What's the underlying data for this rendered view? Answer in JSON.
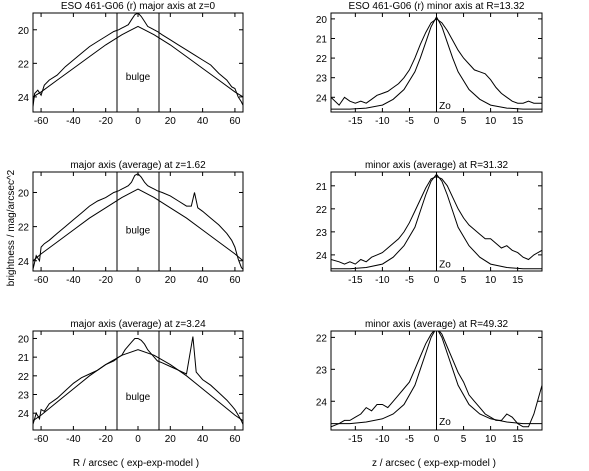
{
  "figure": {
    "ylabel": "brightness   /   mag/arcsec^2",
    "xlabel_left": "R  /  arcsec        ( exp-exp-model )",
    "xlabel_right": "z  /  arcsec        ( exp-exp-model )"
  },
  "chart_data": [
    {
      "type": "line",
      "title": "ESO 461-G06 (r) major axis at z=0",
      "xlim": [
        -65,
        65
      ],
      "ylim": [
        24.9,
        19.0
      ],
      "y_inverted": true,
      "xticks": [
        -60,
        -40,
        -20,
        0,
        20,
        40,
        60
      ],
      "yticks": [
        20,
        22,
        24
      ],
      "vlines": [
        -13,
        13
      ],
      "annotation": "bulge",
      "annotation_at": [
        0,
        23.0
      ],
      "series": [
        {
          "role": "data",
          "x": [
            -65,
            -64,
            -62,
            -60,
            -58,
            -55,
            -50,
            -45,
            -40,
            -35,
            -30,
            -25,
            -20,
            -15,
            -12,
            -10,
            -8,
            -6,
            -4,
            -2,
            0,
            2,
            4,
            6,
            8,
            10,
            12,
            15,
            20,
            25,
            30,
            35,
            40,
            45,
            50,
            55,
            58,
            60,
            62,
            64,
            65
          ],
          "y": [
            24.6,
            23.8,
            23.6,
            23.9,
            23.3,
            23.0,
            22.7,
            22.2,
            21.8,
            21.4,
            21.0,
            20.7,
            20.4,
            20.1,
            20.0,
            19.9,
            19.8,
            19.7,
            19.4,
            19.1,
            19.0,
            19.2,
            19.5,
            19.8,
            19.9,
            20.0,
            20.1,
            20.3,
            20.6,
            20.9,
            21.2,
            21.5,
            21.8,
            22.1,
            22.6,
            23.0,
            23.4,
            23.5,
            24.0,
            24.3,
            24.5
          ]
        },
        {
          "role": "model",
          "x": [
            -65,
            -60,
            -50,
            -40,
            -30,
            -20,
            -10,
            0,
            10,
            20,
            30,
            40,
            50,
            60,
            65
          ],
          "y": [
            24.0,
            23.7,
            23.0,
            22.3,
            21.6,
            20.9,
            20.3,
            19.8,
            20.3,
            20.9,
            21.6,
            22.3,
            23.0,
            23.7,
            24.0
          ]
        }
      ]
    },
    {
      "type": "line",
      "title": "ESO 461-G06 (r) minor axis at R=13.32",
      "xlim": [
        -19.5,
        19.5
      ],
      "ylim": [
        24.75,
        19.7
      ],
      "y_inverted": true,
      "xticks": [
        -15,
        -10,
        -5,
        0,
        5,
        10,
        15
      ],
      "yticks": [
        20,
        21,
        22,
        23,
        24
      ],
      "vlines": [
        0
      ],
      "annotation": "Zo",
      "annotation_at": [
        0.3,
        24.6
      ],
      "series": [
        {
          "role": "data",
          "x": [
            -19.5,
            -18,
            -17,
            -16,
            -15,
            -14,
            -13,
            -12,
            -11,
            -10,
            -9,
            -8,
            -7,
            -6,
            -5,
            -4,
            -3,
            -2,
            -1,
            0,
            1,
            2,
            3,
            4,
            5,
            6,
            7,
            8,
            9,
            10,
            11,
            12,
            13,
            14,
            15,
            16,
            17,
            18,
            19.5
          ],
          "y": [
            24.0,
            24.4,
            24.0,
            24.2,
            24.3,
            24.2,
            24.3,
            24.1,
            23.9,
            23.8,
            23.7,
            23.5,
            23.3,
            23.0,
            22.6,
            22.0,
            21.3,
            20.7,
            20.2,
            20.0,
            20.2,
            20.6,
            21.1,
            21.6,
            22.0,
            22.3,
            22.6,
            22.7,
            22.8,
            23.1,
            23.5,
            23.8,
            24.0,
            24.2,
            24.3,
            24.3,
            24.2,
            24.3,
            24.3
          ]
        },
        {
          "role": "model",
          "x": [
            -19.5,
            -16,
            -13,
            -10,
            -8,
            -6,
            -4,
            -3,
            -2,
            -1,
            0,
            1,
            2,
            3,
            4,
            6,
            8,
            10,
            13,
            16,
            19.5
          ],
          "y": [
            24.6,
            24.6,
            24.55,
            24.4,
            24.1,
            23.6,
            22.7,
            22.0,
            21.2,
            20.4,
            19.9,
            20.4,
            21.2,
            22.0,
            22.7,
            23.6,
            24.1,
            24.4,
            24.55,
            24.6,
            24.6
          ]
        }
      ]
    },
    {
      "type": "line",
      "title": "major axis (average) at z=1.62",
      "xlim": [
        -65,
        65
      ],
      "ylim": [
        24.6,
        18.8
      ],
      "y_inverted": true,
      "xticks": [
        -60,
        -40,
        -20,
        0,
        20,
        40,
        60
      ],
      "yticks": [
        20,
        22,
        24
      ],
      "vlines": [
        -13,
        13
      ],
      "annotation": "bulge",
      "annotation_at": [
        0,
        22.4
      ],
      "series": [
        {
          "role": "data",
          "x": [
            -65,
            -63,
            -61,
            -60,
            -58,
            -55,
            -50,
            -45,
            -40,
            -35,
            -30,
            -25,
            -20,
            -15,
            -12,
            -10,
            -8,
            -6,
            -4,
            -2,
            0,
            2,
            4,
            6,
            8,
            10,
            12,
            15,
            20,
            25,
            30,
            33,
            35,
            37,
            40,
            45,
            50,
            55,
            58,
            60,
            62,
            64,
            65
          ],
          "y": [
            24.5,
            23.7,
            24.0,
            23.2,
            23.0,
            22.8,
            22.4,
            22.0,
            21.6,
            21.2,
            20.8,
            20.5,
            20.3,
            20.0,
            19.9,
            19.8,
            19.7,
            19.6,
            19.4,
            19.0,
            18.9,
            19.1,
            19.4,
            19.6,
            19.7,
            19.8,
            19.9,
            20.0,
            20.2,
            20.5,
            20.8,
            20.8,
            20.0,
            20.9,
            21.1,
            21.5,
            21.9,
            22.4,
            22.8,
            23.2,
            23.9,
            24.4,
            24.5
          ]
        },
        {
          "role": "model",
          "x": [
            -65,
            -60,
            -50,
            -40,
            -30,
            -20,
            -10,
            0,
            10,
            20,
            30,
            40,
            50,
            60,
            65
          ],
          "y": [
            24.0,
            23.6,
            22.9,
            22.2,
            21.5,
            20.9,
            20.3,
            19.8,
            20.3,
            20.9,
            21.5,
            22.2,
            22.9,
            23.6,
            24.0
          ]
        }
      ]
    },
    {
      "type": "line",
      "title": "minor axis (average) at R=31.32",
      "xlim": [
        -19.5,
        19.5
      ],
      "ylim": [
        24.7,
        20.4
      ],
      "y_inverted": true,
      "xticks": [
        -15,
        -10,
        -5,
        0,
        5,
        10,
        15
      ],
      "yticks": [
        21,
        22,
        23,
        24
      ],
      "vlines": [
        0
      ],
      "annotation": "Zo",
      "annotation_at": [
        0.3,
        24.55
      ],
      "series": [
        {
          "role": "data",
          "x": [
            -19.5,
            -18,
            -17,
            -16,
            -15,
            -14,
            -13,
            -12,
            -11,
            -10,
            -9,
            -8,
            -7,
            -6,
            -5,
            -4,
            -3,
            -2,
            -1,
            0,
            1,
            2,
            3,
            4,
            5,
            6,
            7,
            8,
            9,
            10,
            11,
            12,
            13,
            14,
            15,
            16,
            17,
            18,
            19.5
          ],
          "y": [
            24.2,
            24.3,
            24.4,
            24.3,
            24.4,
            24.2,
            24.3,
            24.1,
            24.0,
            23.9,
            23.7,
            23.5,
            23.3,
            23.0,
            22.6,
            22.1,
            21.6,
            21.1,
            20.7,
            20.6,
            20.7,
            21.0,
            21.5,
            22.0,
            22.4,
            22.7,
            22.9,
            23.1,
            23.3,
            23.3,
            23.5,
            23.7,
            23.6,
            23.8,
            23.9,
            24.1,
            24.2,
            24.0,
            23.8
          ]
        },
        {
          "role": "model",
          "x": [
            -19.5,
            -16,
            -13,
            -10,
            -8,
            -6,
            -4,
            -3,
            -2,
            -1,
            0,
            1,
            2,
            3,
            4,
            6,
            8,
            10,
            13,
            16,
            19.5
          ],
          "y": [
            24.6,
            24.6,
            24.55,
            24.4,
            24.1,
            23.6,
            22.8,
            22.1,
            21.4,
            20.8,
            20.5,
            20.8,
            21.4,
            22.1,
            22.8,
            23.6,
            24.1,
            24.4,
            24.55,
            24.6,
            24.6
          ]
        }
      ]
    },
    {
      "type": "line",
      "title": "major axis (average) at z=3.24",
      "xlim": [
        -65,
        65
      ],
      "ylim": [
        24.9,
        19.6
      ],
      "y_inverted": true,
      "xticks": [
        -60,
        -40,
        -20,
        0,
        20,
        40,
        60
      ],
      "yticks": [
        20,
        21,
        22,
        23,
        24
      ],
      "vlines": [
        -13,
        13
      ],
      "annotation": "bulge",
      "annotation_at": [
        0,
        23.3
      ],
      "series": [
        {
          "role": "data",
          "x": [
            -65,
            -63,
            -61,
            -60,
            -58,
            -55,
            -50,
            -45,
            -40,
            -35,
            -30,
            -25,
            -20,
            -15,
            -12,
            -10,
            -8,
            -6,
            -4,
            -2,
            0,
            2,
            4,
            6,
            8,
            10,
            12,
            15,
            20,
            25,
            30,
            32,
            34,
            36,
            40,
            45,
            50,
            55,
            58,
            60,
            62,
            64,
            65
          ],
          "y": [
            24.6,
            24.0,
            24.3,
            23.8,
            23.9,
            23.5,
            23.2,
            22.8,
            22.4,
            22.1,
            21.9,
            21.7,
            21.4,
            21.2,
            21.0,
            20.9,
            20.6,
            20.4,
            20.2,
            20.0,
            20.0,
            20.1,
            20.3,
            20.6,
            20.8,
            21.0,
            21.2,
            21.3,
            21.5,
            21.7,
            21.9,
            20.9,
            19.9,
            21.8,
            22.2,
            22.5,
            22.9,
            23.3,
            23.6,
            23.8,
            24.1,
            24.4,
            24.6
          ]
        },
        {
          "role": "model",
          "x": [
            -65,
            -60,
            -50,
            -40,
            -30,
            -20,
            -10,
            0,
            10,
            20,
            30,
            40,
            50,
            60,
            65
          ],
          "y": [
            24.4,
            24.1,
            23.4,
            22.7,
            22.0,
            21.4,
            20.9,
            20.6,
            20.9,
            21.4,
            22.0,
            22.7,
            23.4,
            24.1,
            24.4
          ]
        }
      ]
    },
    {
      "type": "line",
      "title": "minor axis (average) at R=49.32",
      "xlim": [
        -19.5,
        19.5
      ],
      "ylim": [
        24.9,
        21.8
      ],
      "y_inverted": true,
      "xticks": [
        -15,
        -10,
        -5,
        0,
        5,
        10,
        15
      ],
      "yticks": [
        22,
        23,
        24
      ],
      "vlines": [
        0
      ],
      "annotation": "Zo",
      "annotation_at": [
        0.3,
        24.75
      ],
      "series": [
        {
          "role": "data",
          "x": [
            -19.5,
            -18,
            -17,
            -16,
            -15,
            -14,
            -13,
            -12,
            -11,
            -10,
            -9,
            -8,
            -7,
            -6,
            -5,
            -4,
            -3,
            -2,
            -1,
            0,
            1,
            2,
            3,
            4,
            5,
            6,
            7,
            8,
            9,
            10,
            11,
            12,
            13,
            14,
            15,
            16,
            17,
            18,
            19.5
          ],
          "y": [
            24.8,
            24.7,
            24.6,
            24.6,
            24.5,
            24.4,
            24.2,
            24.3,
            24.1,
            24.1,
            24.2,
            24.0,
            23.8,
            23.6,
            23.4,
            23.0,
            22.6,
            22.2,
            21.9,
            21.7,
            21.9,
            22.3,
            22.7,
            23.1,
            23.4,
            23.8,
            24.0,
            24.2,
            24.4,
            24.5,
            24.6,
            24.6,
            24.4,
            24.5,
            24.7,
            24.8,
            24.8,
            24.4,
            23.5
          ]
        },
        {
          "role": "model",
          "x": [
            -19.5,
            -16,
            -13,
            -10,
            -8,
            -6,
            -4,
            -3,
            -2,
            -1,
            0,
            1,
            2,
            3,
            4,
            6,
            8,
            10,
            13,
            16,
            19.5
          ],
          "y": [
            24.7,
            24.7,
            24.65,
            24.55,
            24.4,
            24.1,
            23.5,
            23.0,
            22.5,
            22.0,
            21.7,
            22.0,
            22.5,
            23.0,
            23.5,
            24.1,
            24.4,
            24.55,
            24.65,
            24.7,
            24.7
          ]
        }
      ]
    }
  ]
}
